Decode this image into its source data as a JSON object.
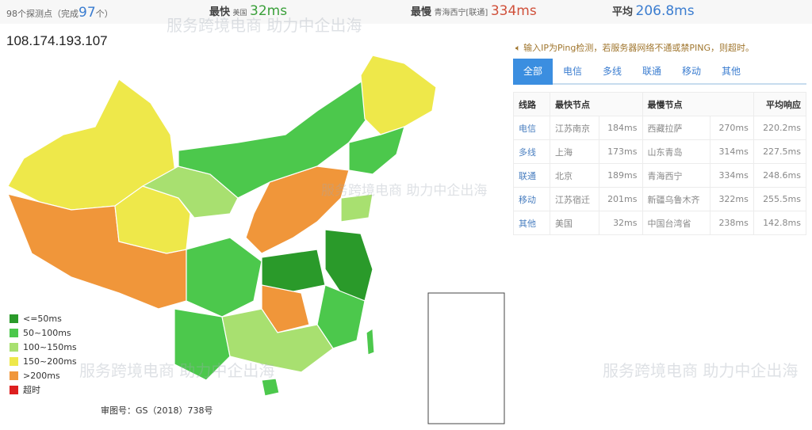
{
  "summary": {
    "probe_count": "98个探测点（完成",
    "completed": "97",
    "unit": "个）",
    "fastest_label": "最快",
    "fastest_location": "美国",
    "fastest_value": "32ms",
    "slowest_label": "最慢",
    "slowest_location": "青海西宁[联通]",
    "slowest_value": "334ms",
    "avg_label": "平均",
    "avg_value": "206.8ms"
  },
  "ip": "108.174.193.107",
  "notice": "输入IP为Ping检测，若服务器网络不通或禁PING，则超时。",
  "tabs": [
    "全部",
    "电信",
    "多线",
    "联通",
    "移动",
    "其他"
  ],
  "table": {
    "headers": [
      "线路",
      "最快节点",
      "",
      "最慢节点",
      "",
      "平均响应"
    ],
    "rows": [
      [
        "电信",
        "江苏南京",
        "184ms",
        "西藏拉萨",
        "270ms",
        "220.2ms"
      ],
      [
        "多线",
        "上海",
        "173ms",
        "山东青岛",
        "314ms",
        "227.5ms"
      ],
      [
        "联通",
        "北京",
        "189ms",
        "青海西宁",
        "334ms",
        "248.6ms"
      ],
      [
        "移动",
        "江苏宿迁",
        "201ms",
        "新疆乌鲁木齐",
        "322ms",
        "255.5ms"
      ],
      [
        "其他",
        "美国",
        "32ms",
        "中国台湾省",
        "238ms",
        "142.8ms"
      ]
    ]
  },
  "legend": [
    {
      "label": "<=50ms",
      "color": "#2a9a2a"
    },
    {
      "label": "50~100ms",
      "color": "#4cc84c"
    },
    {
      "label": "100~150ms",
      "color": "#a8e070"
    },
    {
      "label": "150~200ms",
      "color": "#eee84a"
    },
    {
      "label": ">200ms",
      "color": "#f0963a"
    },
    {
      "label": "超时",
      "color": "#dd1f1f"
    }
  ],
  "map_footer": "审图号：GS（2018）738号",
  "watermark": "服务跨境电商 助力中企出海"
}
